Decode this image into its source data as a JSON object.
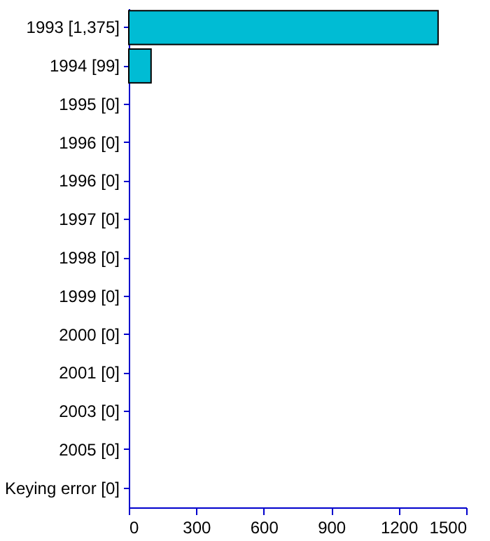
{
  "chart_data": {
    "type": "bar",
    "orientation": "horizontal",
    "categories": [
      "1993 [1,375]",
      "1994 [99]",
      "1995 [0]",
      "1996 [0]",
      "1996 [0]",
      "1997 [0]",
      "1998 [0]",
      "1999 [0]",
      "2000 [0]",
      "2001 [0]",
      "2003 [0]",
      "2005 [0]",
      "Keying error [0]"
    ],
    "values": [
      1375,
      99,
      0,
      0,
      0,
      0,
      0,
      0,
      0,
      0,
      0,
      0,
      0
    ],
    "color": "#00bcd4",
    "xlim": [
      0,
      1500
    ],
    "xticks": [
      0,
      300,
      600,
      900,
      1200,
      1500
    ],
    "grid": false
  }
}
